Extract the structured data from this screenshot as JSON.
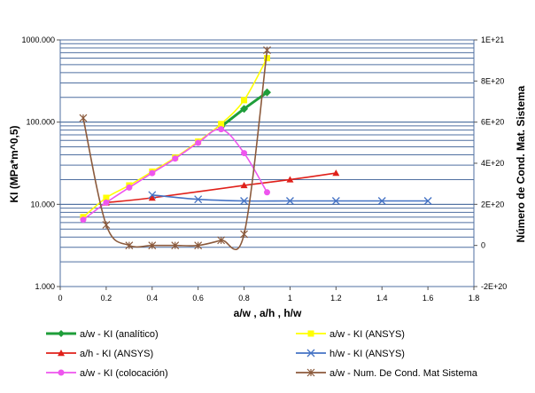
{
  "chart_data": {
    "type": "line",
    "xlabel": "a/w ,  a/h , h/w",
    "ylabel": "KI (MPa*m^0,5)",
    "y2label": "Número de Cond. Mat. Sistema",
    "y_scale": "log",
    "xlim": [
      0,
      1.8
    ],
    "ylim": [
      1,
      1000
    ],
    "y2lim": [
      -2e+20,
      1e+21
    ],
    "grid": "horizontal",
    "legend_position": "bottom",
    "x_ticks": [
      0,
      0.2,
      0.4,
      0.6,
      0.8,
      1,
      1.2,
      1.4,
      1.6,
      1.8
    ],
    "x_tick_labels": [
      "0",
      "0.2",
      "0.4",
      "0.6",
      "0.8",
      "1",
      "1.2",
      "1.4",
      "1.6",
      "1.8"
    ],
    "y_tick_labels": [
      {
        "value": 1000,
        "label": "1000.000"
      },
      {
        "value": 100,
        "label": "100.000"
      },
      {
        "value": 10,
        "label": "10.000"
      },
      {
        "value": 1,
        "label": "1.000"
      }
    ],
    "y2_tick_labels": [
      {
        "value": 1e+21,
        "label": "1E+21"
      },
      {
        "value": 8e+20,
        "label": "8E+20"
      },
      {
        "value": 6e+20,
        "label": "6E+20"
      },
      {
        "value": 4e+20,
        "label": "4E+20"
      },
      {
        "value": 2e+20,
        "label": "2E+20"
      },
      {
        "value": 0,
        "label": "0"
      },
      {
        "value": -2e+20,
        "label": "-2E+20"
      }
    ],
    "series": [
      {
        "name": "a/w - KI (analítico)",
        "color": "#1f9e3a",
        "marker": "diamond",
        "axis": "y",
        "x": [
          0.7,
          0.8,
          0.9
        ],
        "y": [
          88,
          145,
          230
        ]
      },
      {
        "name": "a/w - KI (ANSYS)",
        "color": "#ffff00",
        "marker": "square",
        "axis": "y",
        "x": [
          0.1,
          0.2,
          0.3,
          0.4,
          0.5,
          0.6,
          0.7,
          0.8,
          0.9
        ],
        "y": [
          7,
          12,
          17,
          25,
          37,
          58,
          95,
          185,
          600
        ]
      },
      {
        "name": "a/h - KI (ANSYS)",
        "color": "#e0201a",
        "marker": "triangle",
        "axis": "y",
        "x": [
          0.2,
          0.4,
          0.8,
          1.0,
          1.2
        ],
        "y": [
          10.5,
          12,
          17,
          20,
          24
        ]
      },
      {
        "name": "h/w - KI (ANSYS)",
        "color": "#4472c4",
        "marker": "x",
        "axis": "y",
        "x": [
          0.4,
          0.6,
          0.8,
          1.0,
          1.2,
          1.4,
          1.6
        ],
        "y": [
          13,
          11.5,
          11,
          11,
          11,
          11,
          11
        ]
      },
      {
        "name": "a/w - KI (colocación)",
        "color": "#ee55ee",
        "marker": "circle",
        "axis": "y",
        "x": [
          0.1,
          0.2,
          0.3,
          0.4,
          0.5,
          0.6,
          0.7,
          0.8,
          0.9
        ],
        "y": [
          6.5,
          10.5,
          16,
          24,
          36,
          56,
          82,
          42,
          14
        ]
      },
      {
        "name": "a/w - Num. De Cond. Mat Sistema",
        "color": "#8b5a3c",
        "marker": "star",
        "axis": "y2",
        "x": [
          0.1,
          0.2,
          0.3,
          0.4,
          0.5,
          0.6,
          0.7,
          0.8,
          0.9
        ],
        "y": [
          6.2e+20,
          1e+20,
          0,
          0,
          0,
          0,
          2.5e+19,
          5.5e+19,
          9.5e+20
        ]
      }
    ]
  }
}
